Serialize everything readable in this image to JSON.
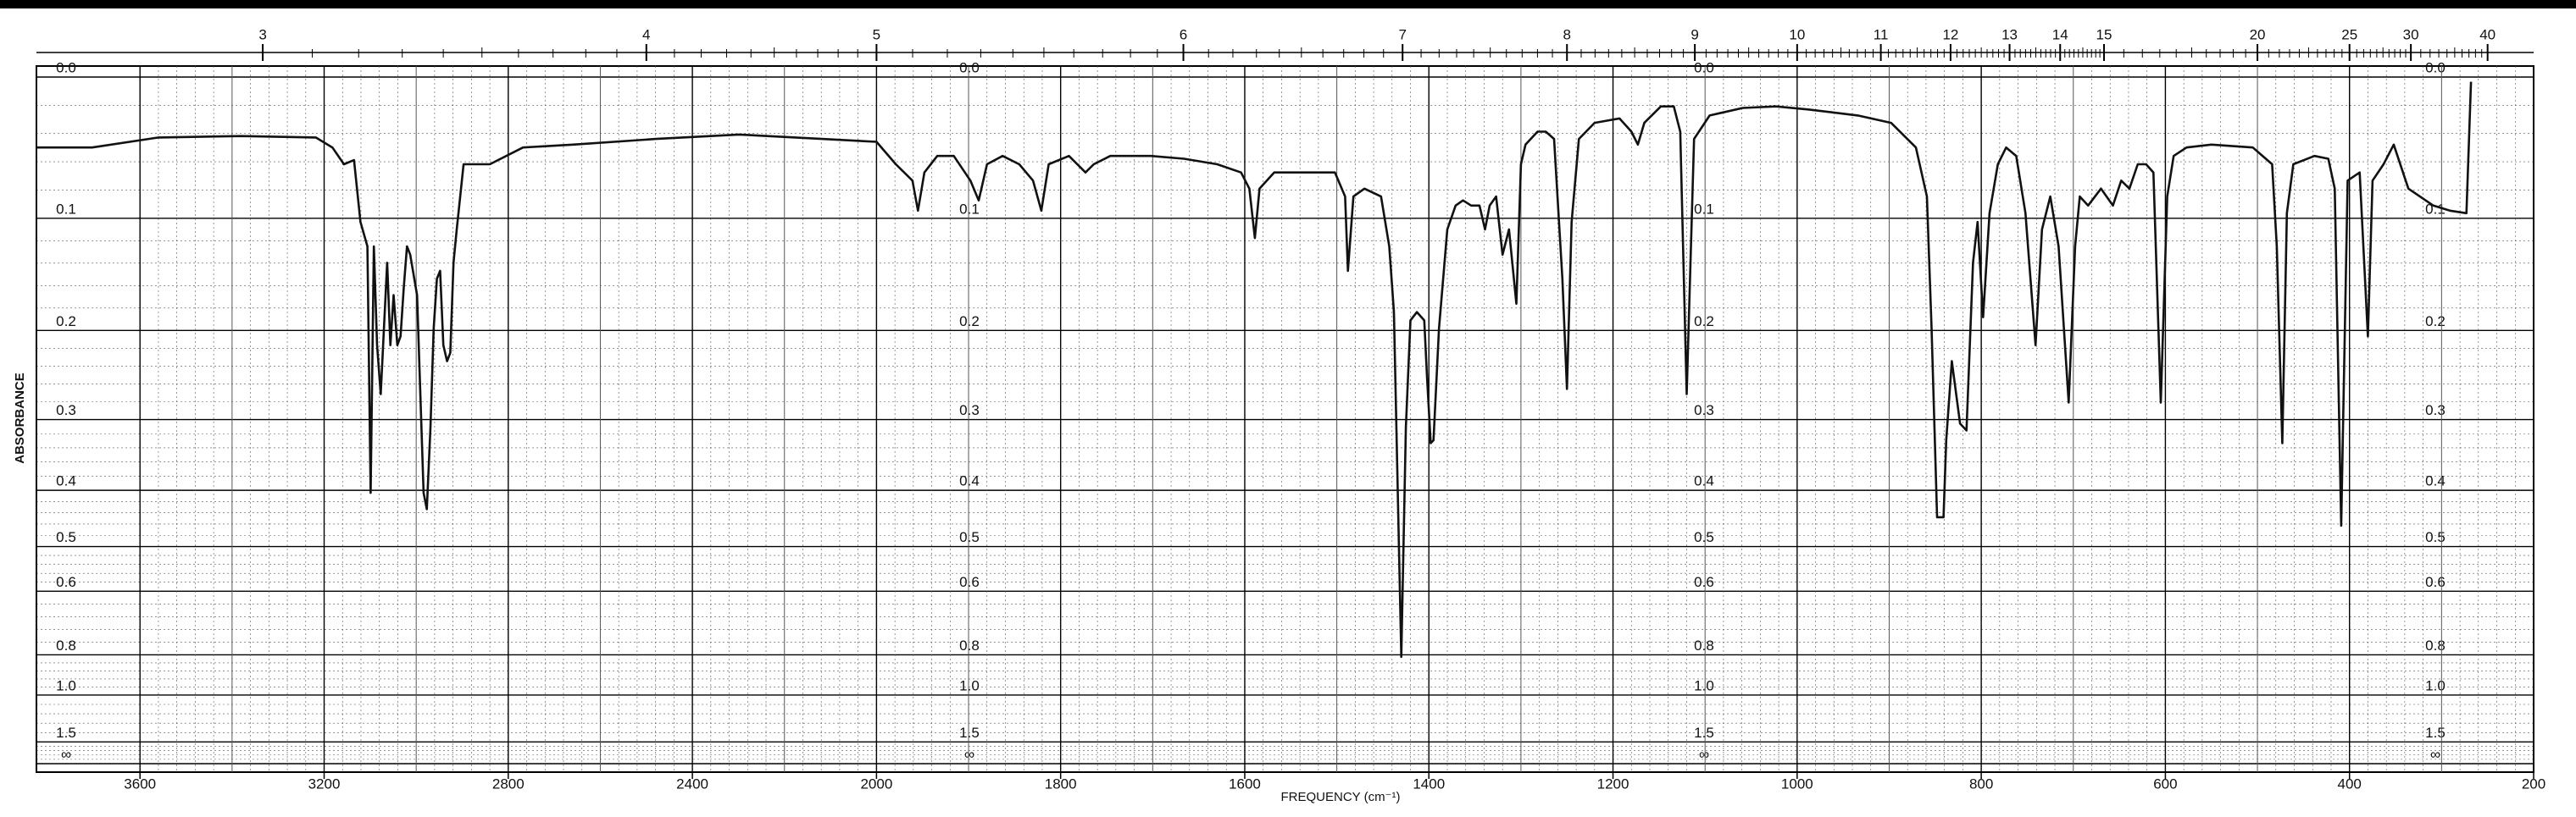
{
  "chart_data": {
    "type": "line",
    "x_label": "FREQUENCY (cm⁻¹)",
    "y_label": "ABSORBANCE",
    "y_scale": "transmittance",
    "x_scale_break": 2000,
    "xlim": [
      3825,
      200
    ],
    "xticks": [
      3600,
      3200,
      2800,
      2400,
      2000,
      1800,
      1600,
      1400,
      1200,
      1000,
      800,
      600,
      400,
      200
    ],
    "x2_scale": "wavelength-um",
    "x2ticks": [
      3,
      4,
      5,
      6,
      7,
      8,
      9,
      10,
      11,
      12,
      13,
      14,
      15,
      20,
      25,
      30,
      40
    ],
    "ylim": [
      0,
      null
    ],
    "yticks": [
      {
        "value": 0,
        "label": "0.0"
      },
      0.1,
      0.2,
      0.3,
      0.4,
      0.5,
      0.6,
      0.8,
      {
        "value": 1,
        "label": "1.0"
      },
      1.5,
      {
        "value": null,
        "label": "∞"
      }
    ],
    "grid": true,
    "color": "#111111",
    "x": [
      3825,
      3704,
      3560,
      3380,
      3218,
      3182,
      3157,
      3135,
      3121,
      3106,
      3099,
      3092,
      3085,
      3077,
      3070,
      3063,
      3056,
      3049,
      3041,
      3034,
      3027,
      3020,
      3013,
      2998,
      2984,
      2977,
      2969,
      2962,
      2955,
      2948,
      2941,
      2933,
      2926,
      2919,
      2912,
      2897,
      2876,
      2840,
      2768,
      2659,
      2479,
      2299,
      2119,
      2000,
      1979,
      1961,
      1955,
      1948,
      1934,
      1916,
      1898,
      1889,
      1880,
      1863,
      1845,
      1830,
      1821,
      1813,
      1791,
      1773,
      1764,
      1746,
      1702,
      1666,
      1630,
      1604,
      1595,
      1589,
      1584,
      1568,
      1523,
      1502,
      1491,
      1488,
      1482,
      1470,
      1452,
      1443,
      1438,
      1430,
      1425,
      1420,
      1413,
      1405,
      1402,
      1398,
      1395,
      1389,
      1380,
      1371,
      1363,
      1354,
      1345,
      1339,
      1334,
      1327,
      1320,
      1313,
      1305,
      1300,
      1295,
      1282,
      1273,
      1264,
      1255,
      1250,
      1245,
      1237,
      1220,
      1193,
      1180,
      1173,
      1166,
      1148,
      1134,
      1127,
      1120,
      1112,
      1095,
      1059,
      1023,
      988,
      934,
      898,
      871,
      859,
      854,
      848,
      841,
      838,
      832,
      823,
      816,
      809,
      804,
      798,
      791,
      782,
      773,
      762,
      752,
      741,
      734,
      725,
      716,
      705,
      698,
      693,
      684,
      670,
      657,
      648,
      639,
      630,
      621,
      613,
      605,
      598,
      591,
      577,
      550,
      505,
      484,
      479,
      473,
      468,
      461,
      438,
      423,
      416,
      409,
      402,
      389,
      380,
      375,
      363,
      352,
      336,
      309,
      291,
      273,
      268
    ],
    "values": [
      0.047,
      0.047,
      0.04,
      0.039,
      0.04,
      0.047,
      0.059,
      0.056,
      0.103,
      0.123,
      0.404,
      0.123,
      0.215,
      0.269,
      0.198,
      0.137,
      0.215,
      0.166,
      0.215,
      0.206,
      0.159,
      0.123,
      0.13,
      0.166,
      0.404,
      0.431,
      0.31,
      0.198,
      0.151,
      0.144,
      0.215,
      0.232,
      0.223,
      0.137,
      0.109,
      0.059,
      0.059,
      0.059,
      0.047,
      0.045,
      0.041,
      0.038,
      0.041,
      0.043,
      0.059,
      0.071,
      0.094,
      0.065,
      0.053,
      0.053,
      0.071,
      0.086,
      0.059,
      0.053,
      0.059,
      0.071,
      0.094,
      0.059,
      0.053,
      0.065,
      0.059,
      0.053,
      0.053,
      0.055,
      0.059,
      0.065,
      0.077,
      0.116,
      0.077,
      0.065,
      0.065,
      0.065,
      0.083,
      0.144,
      0.083,
      0.077,
      0.083,
      0.123,
      0.182,
      0.808,
      0.31,
      0.19,
      0.182,
      0.19,
      0.25,
      0.331,
      0.327,
      0.198,
      0.109,
      0.09,
      0.086,
      0.09,
      0.09,
      0.109,
      0.09,
      0.083,
      0.13,
      0.109,
      0.174,
      0.059,
      0.045,
      0.036,
      0.036,
      0.041,
      0.151,
      0.263,
      0.103,
      0.041,
      0.03,
      0.027,
      0.036,
      0.045,
      0.03,
      0.019,
      0.019,
      0.036,
      0.269,
      0.041,
      0.025,
      0.02,
      0.019,
      0.021,
      0.025,
      0.03,
      0.047,
      0.083,
      0.198,
      0.445,
      0.445,
      0.327,
      0.232,
      0.305,
      0.314,
      0.137,
      0.103,
      0.187,
      0.096,
      0.059,
      0.047,
      0.053,
      0.096,
      0.215,
      0.109,
      0.083,
      0.123,
      0.279,
      0.123,
      0.083,
      0.09,
      0.077,
      0.09,
      0.071,
      0.077,
      0.059,
      0.059,
      0.065,
      0.279,
      0.083,
      0.053,
      0.047,
      0.045,
      0.047,
      0.059,
      0.123,
      0.331,
      0.096,
      0.059,
      0.053,
      0.055,
      0.077,
      0.46,
      0.071,
      0.065,
      0.206,
      0.071,
      0.059,
      0.045,
      0.077,
      0.09,
      0.094,
      0.096,
      0.003
    ]
  }
}
